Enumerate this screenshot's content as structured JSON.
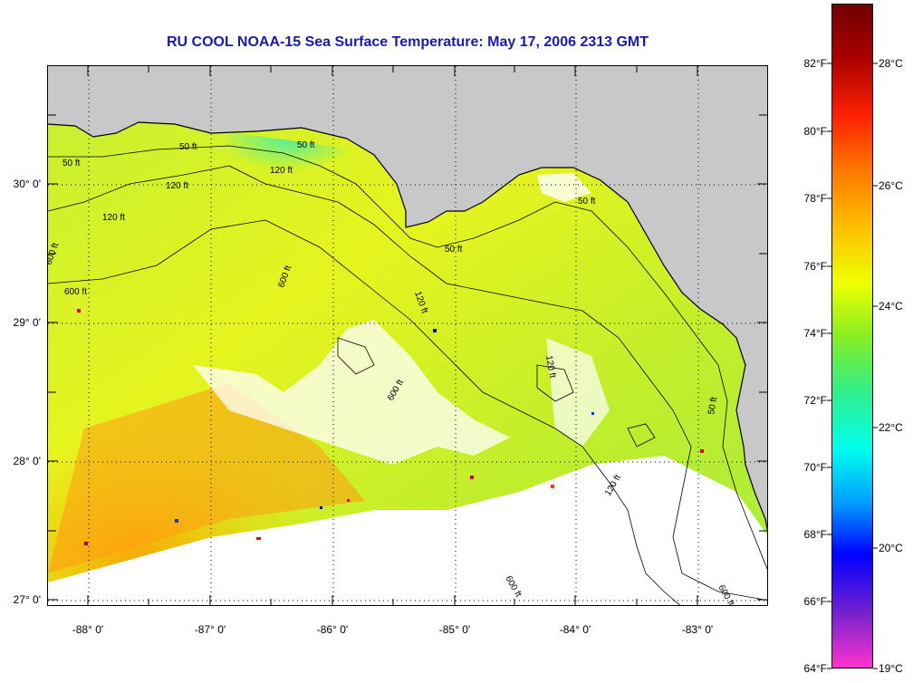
{
  "title": "RU COOL  NOAA-15  Sea Surface Temperature:  May 17, 2006 2313 GMT",
  "latitude_labels": [
    "30° 0'",
    "29° 0'",
    "28° 0'",
    "27° 0'"
  ],
  "longitude_labels": [
    "-88° 0'",
    "-87° 0'",
    "-86° 0'",
    "-85° 0'",
    "-84° 0'",
    "-83° 0'"
  ],
  "colorbar": {
    "fahrenheit_labels": [
      "82°F",
      "80°F",
      "78°F",
      "76°F",
      "74°F",
      "72°F",
      "70°F",
      "68°F",
      "66°F",
      "64°F"
    ],
    "celsius_labels": [
      "28°C",
      "26°C",
      "24°C",
      "22°C",
      "20°C",
      "19°C"
    ],
    "colors": [
      "#ff33cc",
      "#7722cc",
      "#0000ff",
      "#00a0ff",
      "#00ffee",
      "#33ee88",
      "#88ee22",
      "#eeff00",
      "#ffbb00",
      "#ff7700",
      "#ff2200",
      "#aa0000",
      "#700000"
    ]
  },
  "contour_labels": [
    "50 ft",
    "50 ft",
    "50 ft",
    "50 ft",
    "50 ft",
    "50 ft",
    "120 ft",
    "120 ft",
    "120 ft",
    "120 ft",
    "120 ft",
    "120 ft",
    "600 ft",
    "600 ft",
    "600 ft",
    "600 ft",
    "600 ft",
    "600 ft"
  ],
  "map_colors": {
    "land": "#c8c8c8",
    "no_data": "#ffffff",
    "coast": "#000000"
  }
}
